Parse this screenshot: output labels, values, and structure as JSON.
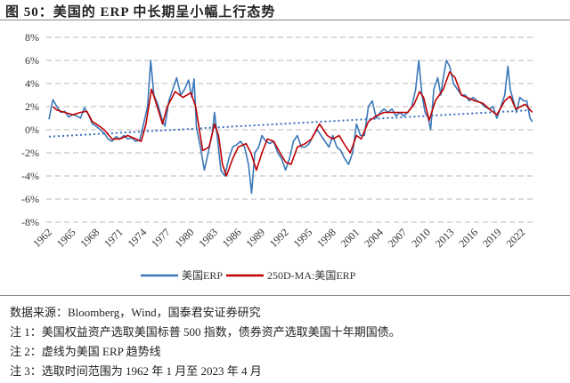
{
  "title": "图 50：美国的 ERP 中长期呈小幅上行态势",
  "notes": [
    "数据来源：Bloomberg，Wind，国泰君安证券研究",
    "注 1：美国权益资产选取美国标普 500 指数，债券资产选取美国十年期国债。",
    "注 2：虚线为美国 ERP 趋势线",
    "注 3：选取时间范围为 1962 年 1 月至 2023 年 4 月"
  ],
  "chart_data": {
    "type": "line",
    "title": "",
    "xlabel": "",
    "ylabel": "",
    "xlim": [
      1962,
      2023.33
    ],
    "ylim": [
      -8,
      8
    ],
    "y_ticks": [
      8,
      6,
      4,
      2,
      0,
      -2,
      -4,
      -6,
      -8
    ],
    "y_tick_labels": [
      "8%",
      "6%",
      "4%",
      "2%",
      "0%",
      "-2%",
      "-4%",
      "-6%",
      "-8%"
    ],
    "x_ticks": [
      1962,
      1965,
      1968,
      1971,
      1974,
      1977,
      1980,
      1983,
      1986,
      1989,
      1992,
      1995,
      1998,
      2001,
      2004,
      2007,
      2010,
      2013,
      2016,
      2019,
      2022
    ],
    "x_tick_labels": [
      "1962",
      "1965",
      "1968",
      "1971",
      "1974",
      "1977",
      "1980",
      "1983",
      "1986",
      "1989",
      "1992",
      "1995",
      "1998",
      "2001",
      "2004",
      "2007",
      "2010",
      "2013",
      "2016",
      "2019",
      "2022"
    ],
    "grid": "horizontal-dashed",
    "legend": "bottom",
    "colors": {
      "erp": "#3a78b8",
      "ma": "#c00000",
      "trend": "#3a6ec0",
      "grid": "#c8c8c8"
    },
    "series": [
      {
        "name": "美国ERP",
        "points": [
          [
            1962.0,
            0.9
          ],
          [
            1962.5,
            2.6
          ],
          [
            1963,
            2.0
          ],
          [
            1963.5,
            1.5
          ],
          [
            1964,
            1.6
          ],
          [
            1964.5,
            1.1
          ],
          [
            1965,
            1.3
          ],
          [
            1965.5,
            1.2
          ],
          [
            1966,
            1.0
          ],
          [
            1966.5,
            1.9
          ],
          [
            1967,
            1.3
          ],
          [
            1967.5,
            0.5
          ],
          [
            1968,
            0.3
          ],
          [
            1968.5,
            0.0
          ],
          [
            1969,
            -0.3
          ],
          [
            1969.5,
            -0.8
          ],
          [
            1970,
            -1.0
          ],
          [
            1970.5,
            -0.6
          ],
          [
            1971,
            -0.8
          ],
          [
            1971.5,
            -0.5
          ],
          [
            1972,
            -0.8
          ],
          [
            1972.5,
            -0.7
          ],
          [
            1973,
            -1.0
          ],
          [
            1973.5,
            -0.9
          ],
          [
            1974,
            0.5
          ],
          [
            1974.5,
            2.0
          ],
          [
            1974.9,
            6.0
          ],
          [
            1975.3,
            3.0
          ],
          [
            1975.8,
            2.2
          ],
          [
            1976.3,
            1.0
          ],
          [
            1976.7,
            0.3
          ],
          [
            1977.2,
            2.5
          ],
          [
            1977.7,
            3.5
          ],
          [
            1978.2,
            4.5
          ],
          [
            1978.7,
            3.0
          ],
          [
            1979.2,
            3.5
          ],
          [
            1979.7,
            4.3
          ],
          [
            1980.1,
            2.8
          ],
          [
            1980.4,
            4.4
          ],
          [
            1980.7,
            0.2
          ],
          [
            1981.2,
            -1.5
          ],
          [
            1981.7,
            -3.5
          ],
          [
            1982.2,
            -2.0
          ],
          [
            1982.7,
            -0.3
          ],
          [
            1983.0,
            1.5
          ],
          [
            1983.4,
            -1.0
          ],
          [
            1983.8,
            -3.5
          ],
          [
            1984.3,
            -4.0
          ],
          [
            1984.8,
            -2.5
          ],
          [
            1985.3,
            -1.5
          ],
          [
            1985.8,
            -1.3
          ],
          [
            1986.3,
            -1.0
          ],
          [
            1986.8,
            -1.5
          ],
          [
            1987.3,
            -3.0
          ],
          [
            1987.7,
            -5.5
          ],
          [
            1988.1,
            -2.0
          ],
          [
            1988.6,
            -1.5
          ],
          [
            1989.0,
            -0.5
          ],
          [
            1989.5,
            -1.0
          ],
          [
            1990.0,
            -1.2
          ],
          [
            1990.5,
            -1.0
          ],
          [
            1991.0,
            -2.0
          ],
          [
            1991.5,
            -2.5
          ],
          [
            1992.0,
            -3.5
          ],
          [
            1992.5,
            -2.5
          ],
          [
            1993.0,
            -1.0
          ],
          [
            1993.5,
            -0.5
          ],
          [
            1994.0,
            -1.5
          ],
          [
            1994.5,
            -1.5
          ],
          [
            1995.0,
            -1.2
          ],
          [
            1995.5,
            -0.5
          ],
          [
            1996.0,
            0.0
          ],
          [
            1996.5,
            -0.5
          ],
          [
            1997.0,
            -1.0
          ],
          [
            1997.5,
            -1.5
          ],
          [
            1998.0,
            -0.5
          ],
          [
            1998.5,
            -1.5
          ],
          [
            1999.0,
            -1.8
          ],
          [
            1999.5,
            -2.5
          ],
          [
            2000.0,
            -3.0
          ],
          [
            2000.5,
            -2.0
          ],
          [
            2001.0,
            0.5
          ],
          [
            2001.5,
            -0.5
          ],
          [
            2002.0,
            -0.5
          ],
          [
            2002.5,
            2.0
          ],
          [
            2003.0,
            2.5
          ],
          [
            2003.5,
            1.0
          ],
          [
            2004.0,
            1.5
          ],
          [
            2004.5,
            1.8
          ],
          [
            2005.0,
            1.5
          ],
          [
            2005.5,
            1.8
          ],
          [
            2006.0,
            1.2
          ],
          [
            2006.5,
            1.5
          ],
          [
            2007.0,
            1.2
          ],
          [
            2007.5,
            1.5
          ],
          [
            2008.0,
            2.0
          ],
          [
            2008.5,
            3.5
          ],
          [
            2008.9,
            6.0
          ],
          [
            2009.3,
            3.0
          ],
          [
            2009.7,
            1.5
          ],
          [
            2010.1,
            1.0
          ],
          [
            2010.4,
            0.0
          ],
          [
            2010.8,
            3.5
          ],
          [
            2011.3,
            4.5
          ],
          [
            2011.7,
            3.0
          ],
          [
            2012.0,
            4.5
          ],
          [
            2012.4,
            6.0
          ],
          [
            2012.8,
            5.5
          ],
          [
            2013.3,
            4.0
          ],
          [
            2013.8,
            3.5
          ],
          [
            2014.3,
            3.0
          ],
          [
            2014.8,
            3.0
          ],
          [
            2015.3,
            2.5
          ],
          [
            2015.8,
            2.8
          ],
          [
            2016.3,
            2.5
          ],
          [
            2016.8,
            2.3
          ],
          [
            2017.3,
            2.0
          ],
          [
            2017.8,
            1.8
          ],
          [
            2018.3,
            2.0
          ],
          [
            2018.8,
            1.0
          ],
          [
            2019.3,
            2.0
          ],
          [
            2019.8,
            3.0
          ],
          [
            2020.2,
            5.5
          ],
          [
            2020.5,
            3.5
          ],
          [
            2020.9,
            2.5
          ],
          [
            2021.3,
            1.5
          ],
          [
            2021.7,
            2.8
          ],
          [
            2022.2,
            2.5
          ],
          [
            2022.6,
            2.5
          ],
          [
            2023.0,
            1.0
          ],
          [
            2023.3,
            0.7
          ]
        ]
      },
      {
        "name": "250D-MA:美国ERP",
        "points": [
          [
            1962.5,
            2.0
          ],
          [
            1963,
            1.7
          ],
          [
            1964,
            1.5
          ],
          [
            1965,
            1.3
          ],
          [
            1966,
            1.5
          ],
          [
            1966.8,
            1.6
          ],
          [
            1967.5,
            0.7
          ],
          [
            1968,
            0.5
          ],
          [
            1969,
            0.0
          ],
          [
            1970,
            -0.8
          ],
          [
            1971,
            -0.8
          ],
          [
            1972,
            -0.5
          ],
          [
            1973,
            -0.8
          ],
          [
            1973.7,
            -1.0
          ],
          [
            1974.3,
            0.5
          ],
          [
            1975,
            3.5
          ],
          [
            1975.5,
            2.5
          ],
          [
            1976.4,
            0.5
          ],
          [
            1977,
            2.0
          ],
          [
            1978,
            3.3
          ],
          [
            1979,
            2.8
          ],
          [
            1980,
            3.2
          ],
          [
            1980.6,
            2.0
          ],
          [
            1981.5,
            -1.8
          ],
          [
            1982.3,
            -1.5
          ],
          [
            1983,
            0.5
          ],
          [
            1983.5,
            -0.5
          ],
          [
            1984,
            -3.0
          ],
          [
            1984.5,
            -4.0
          ],
          [
            1985.3,
            -2.5
          ],
          [
            1986,
            -1.5
          ],
          [
            1987,
            -1.2
          ],
          [
            1987.6,
            -2.0
          ],
          [
            1988.3,
            -3.5
          ],
          [
            1989,
            -2.0
          ],
          [
            1989.7,
            -0.8
          ],
          [
            1990.5,
            -1.0
          ],
          [
            1991.3,
            -2.0
          ],
          [
            1992,
            -2.8
          ],
          [
            1992.7,
            -3.0
          ],
          [
            1993.5,
            -1.5
          ],
          [
            1994.5,
            -1.2
          ],
          [
            1995.3,
            -0.8
          ],
          [
            1996.3,
            0.5
          ],
          [
            1997.3,
            -0.5
          ],
          [
            1998,
            -0.8
          ],
          [
            1998.8,
            -0.5
          ],
          [
            1999.5,
            -1.3
          ],
          [
            2000.2,
            -2.0
          ],
          [
            2001,
            -0.5
          ],
          [
            2001.6,
            -0.8
          ],
          [
            2002.5,
            0.7
          ],
          [
            2003.5,
            1.2
          ],
          [
            2004.5,
            1.5
          ],
          [
            2005.5,
            1.5
          ],
          [
            2006.5,
            1.5
          ],
          [
            2007.5,
            1.5
          ],
          [
            2008.3,
            2.2
          ],
          [
            2009,
            3.3
          ],
          [
            2009.5,
            2.8
          ],
          [
            2010.2,
            0.8
          ],
          [
            2011,
            2.5
          ],
          [
            2012,
            3.5
          ],
          [
            2012.8,
            5.0
          ],
          [
            2013.5,
            4.5
          ],
          [
            2014.3,
            3.0
          ],
          [
            2015,
            2.8
          ],
          [
            2016,
            2.5
          ],
          [
            2017,
            2.3
          ],
          [
            2018,
            1.7
          ],
          [
            2018.8,
            1.3
          ],
          [
            2019.8,
            2.5
          ],
          [
            2020.5,
            2.9
          ],
          [
            2021.2,
            1.8
          ],
          [
            2021.8,
            2.0
          ],
          [
            2022.4,
            2.2
          ],
          [
            2023.3,
            1.5
          ]
        ]
      }
    ],
    "trendline": {
      "points": [
        [
          1962,
          -0.6
        ],
        [
          2023.33,
          1.7
        ]
      ]
    }
  }
}
